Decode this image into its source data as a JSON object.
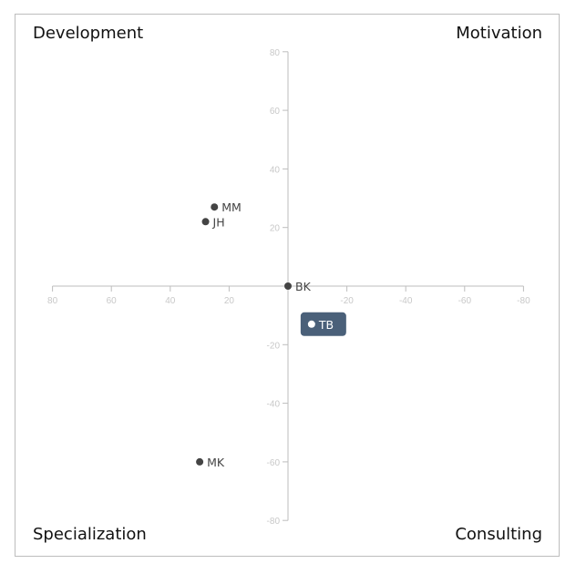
{
  "quadrants": {
    "top_left": "Development",
    "top_right": "Motivation",
    "bottom_left": "Specialization",
    "bottom_right": "Consulting"
  },
  "chart_data": {
    "type": "scatter",
    "title": "",
    "xlabel": "",
    "ylabel": "",
    "xlim": [
      80,
      -80
    ],
    "ylim": [
      -80,
      80
    ],
    "x_ticks": [
      80,
      60,
      40,
      20,
      -20,
      -40,
      -60,
      -80
    ],
    "y_ticks": [
      80,
      60,
      40,
      20,
      -20,
      -40,
      -60,
      -80
    ],
    "grid": false,
    "points": [
      {
        "label": "MM",
        "x": 25,
        "y": 27,
        "highlighted": false
      },
      {
        "label": "JH",
        "x": 28,
        "y": 22,
        "highlighted": false
      },
      {
        "label": "BK",
        "x": 0,
        "y": 0,
        "highlighted": false
      },
      {
        "label": "TB",
        "x": -8,
        "y": -13,
        "highlighted": true
      },
      {
        "label": "MK",
        "x": 30,
        "y": -60,
        "highlighted": false
      }
    ],
    "colors": {
      "axis": "#bdbdbd",
      "tick_text": "#c8c8c8",
      "point": "#444444",
      "highlight_bg": "#4a6079",
      "highlight_text": "#ffffff"
    }
  }
}
